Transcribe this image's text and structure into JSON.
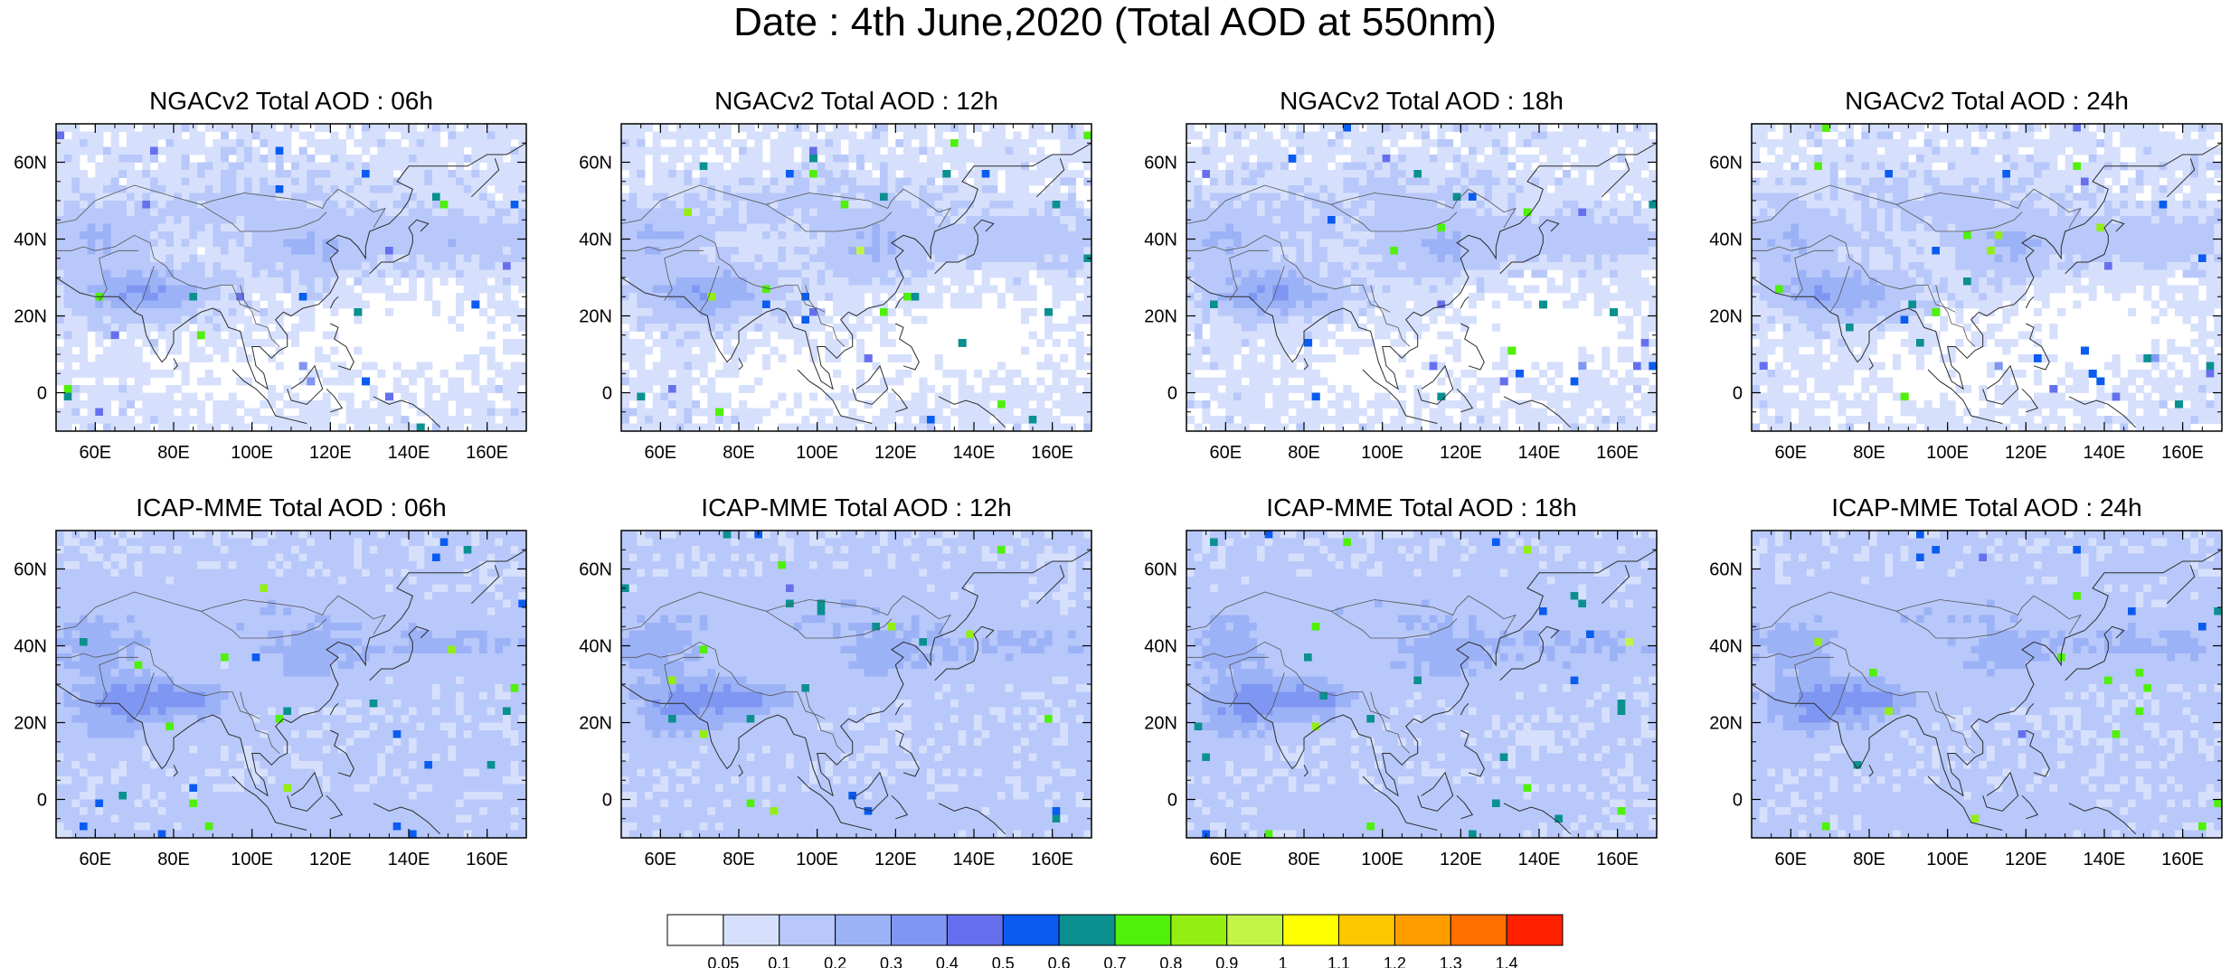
{
  "title": "Date : 4th June,2020 (Total AOD at 550nm)",
  "panels": [
    {
      "title": "NGACv2 Total AOD : 06h",
      "model": "ngac",
      "seed": 11
    },
    {
      "title": "NGACv2 Total AOD : 12h",
      "model": "ngac",
      "seed": 23
    },
    {
      "title": "NGACv2 Total AOD : 18h",
      "model": "ngac",
      "seed": 37
    },
    {
      "title": "NGACv2 Total AOD : 24h",
      "model": "ngac",
      "seed": 41
    },
    {
      "title": "ICAP-MME Total AOD : 06h",
      "model": "icap",
      "seed": 53
    },
    {
      "title": "ICAP-MME Total AOD : 12h",
      "model": "icap",
      "seed": 67
    },
    {
      "title": "ICAP-MME Total AOD : 18h",
      "model": "icap",
      "seed": 79
    },
    {
      "title": "ICAP-MME Total AOD : 24h",
      "model": "icap",
      "seed": 83
    }
  ],
  "map_extent": {
    "lon_min": 50,
    "lon_max": 170,
    "lat_min": -10,
    "lat_max": 70
  },
  "x_ticks": [
    {
      "value": 60,
      "label": "60E"
    },
    {
      "value": 80,
      "label": "80E"
    },
    {
      "value": 100,
      "label": "100E"
    },
    {
      "value": 120,
      "label": "120E"
    },
    {
      "value": 140,
      "label": "140E"
    },
    {
      "value": 160,
      "label": "160E"
    }
  ],
  "y_ticks": [
    {
      "value": 0,
      "label": "0"
    },
    {
      "value": 20,
      "label": "20N"
    },
    {
      "value": 40,
      "label": "40N"
    },
    {
      "value": 60,
      "label": "60N"
    }
  ],
  "colorbar": {
    "levels": [
      "0.05",
      "0.1",
      "0.2",
      "0.3",
      "0.4",
      "0.5",
      "0.6",
      "0.7",
      "0.8",
      "0.9",
      "1",
      "1.1",
      "1.2",
      "1.3",
      "1.4"
    ],
    "colors": [
      "#ffffff",
      "#d6e0fc",
      "#b8c8fa",
      "#9cb2f7",
      "#7f97f3",
      "#6670ef",
      "#0a5cf0",
      "#0b9090",
      "#4ff00a",
      "#93ee14",
      "#c3f548",
      "#ffff00",
      "#ffc700",
      "#ff9c00",
      "#ff7000",
      "#ff2000"
    ]
  }
}
